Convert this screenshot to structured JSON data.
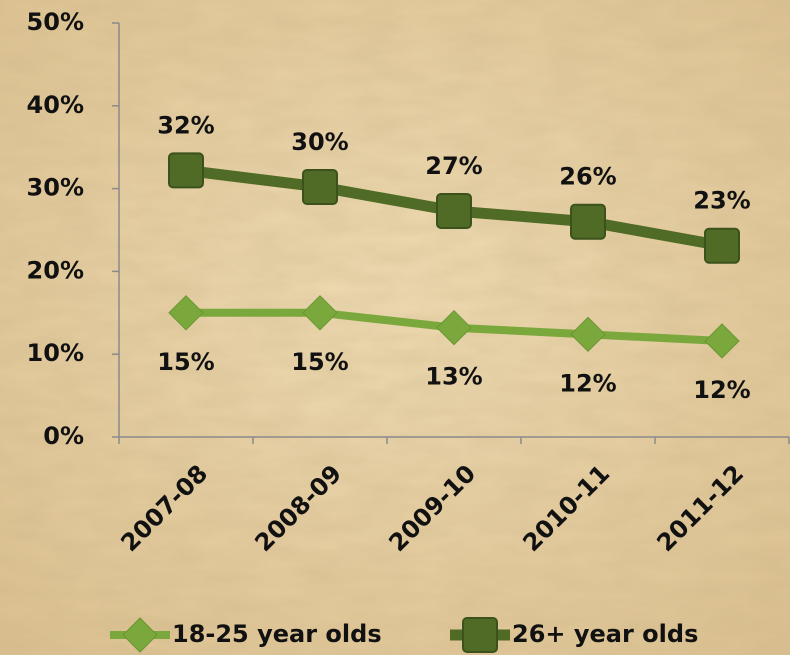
{
  "chart_data": {
    "type": "line",
    "categories": [
      "2007-08",
      "2008-09",
      "2009-10",
      "2010-11",
      "2011-12"
    ],
    "series": [
      {
        "name": "18-25 year olds",
        "color": "#7aa83c",
        "marker": "diamond",
        "values": [
          15,
          15,
          13.2,
          12.4,
          11.6
        ],
        "value_labels": [
          "15%",
          "15%",
          "13%",
          "12%",
          "12%"
        ]
      },
      {
        "name": "26+ year olds",
        "color": "#4f6b26",
        "marker": "square",
        "values": [
          32.2,
          30.2,
          27.3,
          26,
          23.1
        ],
        "value_labels": [
          "32%",
          "30%",
          "27%",
          "26%",
          "23%"
        ]
      }
    ],
    "ylim": [
      0,
      50
    ],
    "yticks": [
      {
        "value": 0,
        "label": "0%"
      },
      {
        "value": 10,
        "label": "10%"
      },
      {
        "value": 20,
        "label": "20%"
      },
      {
        "value": 30,
        "label": "30%"
      },
      {
        "value": 40,
        "label": "40%"
      },
      {
        "value": 50,
        "label": "50%"
      }
    ],
    "grid": false,
    "legend": "bottom"
  }
}
